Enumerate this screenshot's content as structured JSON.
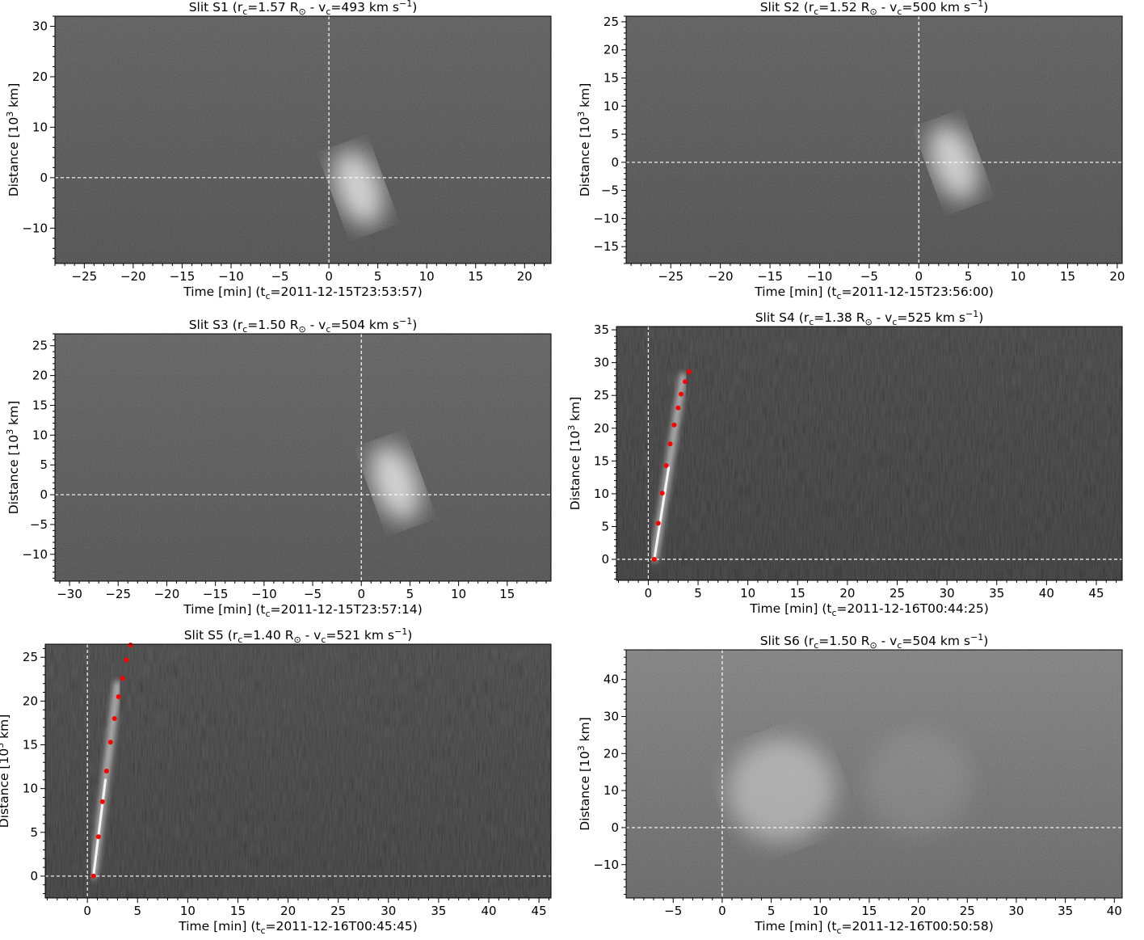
{
  "colors": {
    "background": "#ffffff",
    "guide_line": "#ffffff",
    "marker": "#ff0000"
  },
  "chart_data": [
    {
      "type": "heatmap",
      "id": "s1",
      "title": {
        "main": "Slit S1 (r",
        "sub1": "c",
        "mid1": "=1.57 R",
        "sun": "⊙",
        "mid2": " - v",
        "sub2": "c",
        "mid3": "=493 km s",
        "sup": "−1",
        "end": ")"
      },
      "xlabel": {
        "main": "Time [min] (t",
        "sub": "c",
        "end": "=2011-12-15T23:53:57)"
      },
      "ylabel": {
        "main": "Distance [10",
        "sup": "3",
        "end": " km]"
      },
      "xlim": [
        -28,
        22.7
      ],
      "ylim": [
        -17,
        32
      ],
      "xticks": [
        -25,
        -20,
        -15,
        -10,
        -5,
        0,
        5,
        10,
        15,
        20
      ],
      "yticks": [
        -10,
        0,
        10,
        20,
        30
      ],
      "guides": {
        "x": 0,
        "y": 0
      },
      "background_level": 0.22,
      "blobs": [
        {
          "x": 3.0,
          "y": -2,
          "intensity": 0.72
        }
      ],
      "points": []
    },
    {
      "type": "heatmap",
      "id": "s2",
      "title": {
        "main": "Slit S2 (r",
        "sub1": "c",
        "mid1": "=1.52 R",
        "sun": "⊙",
        "mid2": " - v",
        "sub2": "c",
        "mid3": "=500 km s",
        "sup": "−1",
        "end": ")"
      },
      "xlabel": {
        "main": "Time [min] (t",
        "sub": "c",
        "end": "=2011-12-15T23:56:00)"
      },
      "ylabel": {
        "main": "Distance [10",
        "sup": "3",
        "end": " km]"
      },
      "xlim": [
        -29.5,
        20.5
      ],
      "ylim": [
        -18,
        26
      ],
      "xticks": [
        -25,
        -20,
        -15,
        -10,
        -5,
        0,
        5,
        10,
        15,
        20
      ],
      "yticks": [
        -15,
        -10,
        -5,
        0,
        5,
        10,
        15,
        20,
        25
      ],
      "guides": {
        "x": 0,
        "y": 0
      },
      "background_level": 0.22,
      "blobs": [
        {
          "x": 3.5,
          "y": 0,
          "intensity": 0.7
        }
      ],
      "points": []
    },
    {
      "type": "heatmap",
      "id": "s3",
      "title": {
        "main": "Slit S3 (r",
        "sub1": "c",
        "mid1": "=1.50 R",
        "sun": "⊙",
        "mid2": " - v",
        "sub2": "c",
        "mid3": "=504 km s",
        "sup": "−1",
        "end": ")"
      },
      "xlabel": {
        "main": "Time [min] (t",
        "sub": "c",
        "end": "=2011-12-15T23:57:14)"
      },
      "ylabel": {
        "main": "Distance [10",
        "sup": "3",
        "end": " km]"
      },
      "xlim": [
        -31.5,
        19.5
      ],
      "ylim": [
        -14.5,
        27
      ],
      "xticks": [
        -30,
        -25,
        -20,
        -15,
        -10,
        -5,
        0,
        5,
        10,
        15
      ],
      "yticks": [
        -10,
        -5,
        0,
        5,
        10,
        15,
        20,
        25
      ],
      "guides": {
        "x": 0,
        "y": 0
      },
      "background_level": 0.24,
      "blobs": [
        {
          "x": 3.5,
          "y": 2,
          "intensity": 0.72
        }
      ],
      "points": []
    },
    {
      "type": "heatmap",
      "id": "s4",
      "title": {
        "main": "Slit S4 (r",
        "sub1": "c",
        "mid1": "=1.38 R",
        "sun": "⊙",
        "mid2": " - v",
        "sub2": "c",
        "mid3": "=525 km s",
        "sup": "−1",
        "end": ")"
      },
      "xlabel": {
        "main": "Time [min] (t",
        "sub": "c",
        "end": "=2011-12-16T00:44:25)"
      },
      "ylabel": {
        "main": "Distance [10",
        "sup": "3",
        "end": " km]"
      },
      "xlim": [
        -3.2,
        47.6
      ],
      "ylim": [
        -3.2,
        35.5
      ],
      "xticks": [
        0,
        5,
        10,
        15,
        20,
        25,
        30,
        35,
        40,
        45
      ],
      "yticks": [
        0,
        5,
        10,
        15,
        20,
        25,
        30,
        35
      ],
      "guides": {
        "x": 0,
        "y": 0
      },
      "background_level": 0.12,
      "streak": {
        "x0": 0.6,
        "y0": 0,
        "x1": 3.5,
        "y1": 28
      },
      "blobs": [],
      "points": [
        {
          "x": 0.6,
          "y": 0.0
        },
        {
          "x": 1.0,
          "y": 5.5
        },
        {
          "x": 1.4,
          "y": 10.1
        },
        {
          "x": 1.8,
          "y": 14.3
        },
        {
          "x": 2.2,
          "y": 17.6
        },
        {
          "x": 2.6,
          "y": 20.5
        },
        {
          "x": 3.0,
          "y": 23.1
        },
        {
          "x": 3.3,
          "y": 25.2
        },
        {
          "x": 3.7,
          "y": 27.1
        },
        {
          "x": 4.1,
          "y": 28.6
        }
      ]
    },
    {
      "type": "heatmap",
      "id": "s5",
      "title": {
        "main": "Slit S5 (r",
        "sub1": "c",
        "mid1": "=1.40 R",
        "sun": "⊙",
        "mid2": " - v",
        "sub2": "c",
        "mid3": "=521 km s",
        "sup": "−1",
        "end": ")"
      },
      "xlabel": {
        "main": "Time [min] (t",
        "sub": "c",
        "end": "=2011-12-16T00:45:45)"
      },
      "ylabel": {
        "main": "Distance [10",
        "sup": "3",
        "end": " km]"
      },
      "xlim": [
        -4.2,
        46.2
      ],
      "ylim": [
        -2.5,
        26.5
      ],
      "xticks": [
        0,
        5,
        10,
        15,
        20,
        25,
        30,
        35,
        40,
        45
      ],
      "yticks": [
        0,
        5,
        10,
        15,
        20,
        25
      ],
      "guides": {
        "x": 0,
        "y": 0
      },
      "background_level": 0.14,
      "streak": {
        "x0": 0.6,
        "y0": 0,
        "x1": 3.0,
        "y1": 22
      },
      "blobs": [],
      "points": [
        {
          "x": 0.6,
          "y": 0.0
        },
        {
          "x": 1.1,
          "y": 4.5
        },
        {
          "x": 1.5,
          "y": 8.5
        },
        {
          "x": 1.9,
          "y": 12.0
        },
        {
          "x": 2.3,
          "y": 15.3
        },
        {
          "x": 2.7,
          "y": 18.0
        },
        {
          "x": 3.1,
          "y": 20.5
        },
        {
          "x": 3.5,
          "y": 22.6
        },
        {
          "x": 3.9,
          "y": 24.7
        },
        {
          "x": 4.3,
          "y": 26.4
        }
      ]
    },
    {
      "type": "heatmap",
      "id": "s6",
      "title": {
        "main": "Slit S6 (r",
        "sub1": "c",
        "mid1": "=1.50 R",
        "sun": "⊙",
        "mid2": " - v",
        "sub2": "c",
        "mid3": "=504 km s",
        "sup": "−1",
        "end": ")"
      },
      "xlabel": {
        "main": "Time [min] (t",
        "sub": "c",
        "end": "=2011-12-16T00:50:58)"
      },
      "ylabel": {
        "main": "Distance [10",
        "sup": "3",
        "end": " km]"
      },
      "xlim": [
        -9.8,
        40.8
      ],
      "ylim": [
        -19,
        48
      ],
      "xticks": [
        -5,
        0,
        5,
        10,
        15,
        20,
        25,
        30,
        35,
        40
      ],
      "yticks": [
        -10,
        0,
        10,
        20,
        30,
        40
      ],
      "guides": {
        "x": 0,
        "y": 0
      },
      "background_level": 0.42,
      "blobs": [
        {
          "x": 6,
          "y": 10,
          "intensity": 0.4
        },
        {
          "x": 20,
          "y": 12,
          "intensity": 0.1
        }
      ],
      "points": []
    }
  ]
}
